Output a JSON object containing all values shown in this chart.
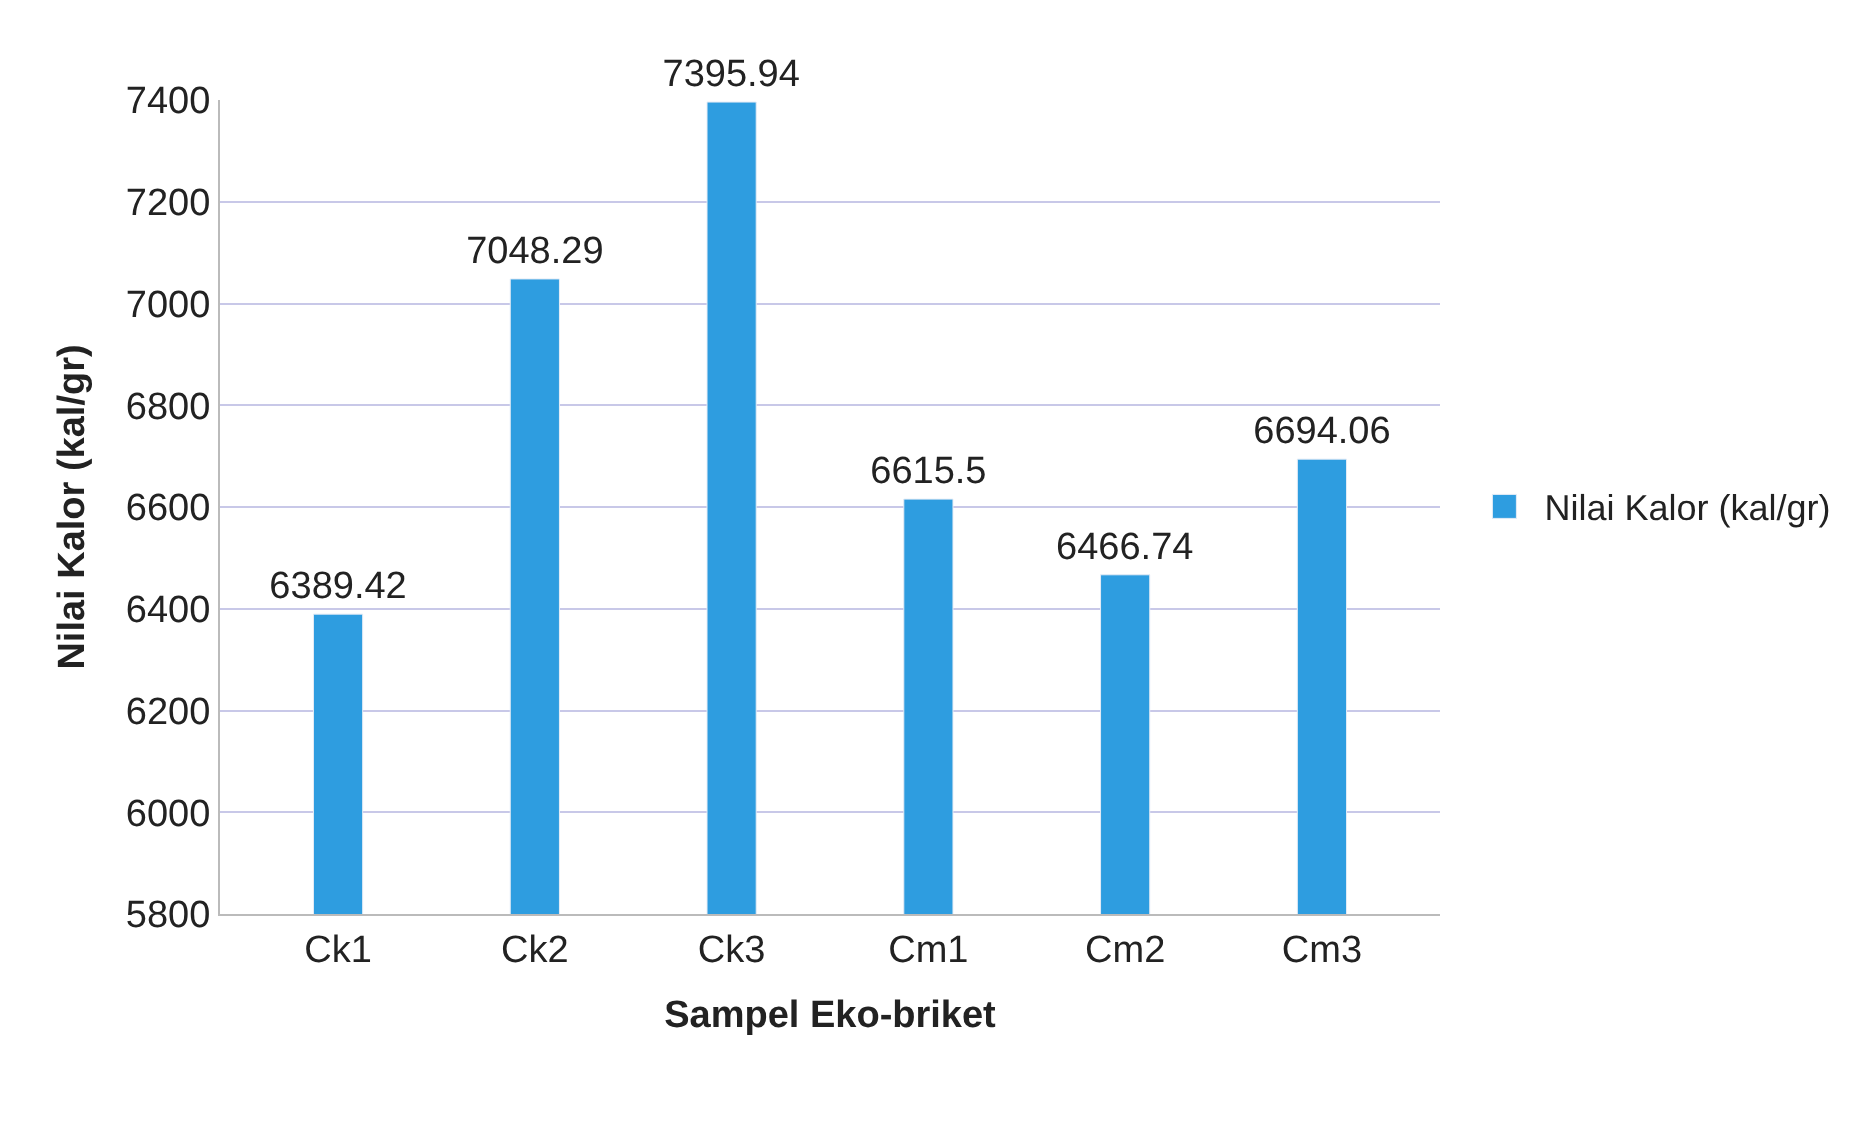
{
  "chart_data": {
    "type": "bar",
    "xlabel": "Sampel Eko-briket",
    "ylabel": "Nilai Kalor (kal/gr)",
    "categories": [
      "Ck1",
      "Ck2",
      "Ck3",
      "Cm1",
      "Cm2",
      "Cm3"
    ],
    "series": [
      {
        "name": "Nilai Kalor (kal/gr)",
        "color": "#2e9de0",
        "values": [
          6389.42,
          7048.29,
          7395.94,
          6615.5,
          6466.74,
          6694.06
        ]
      }
    ],
    "ylim": [
      5800,
      7400
    ],
    "yticks": [
      5800,
      6000,
      6200,
      6400,
      6600,
      6800,
      7000,
      7200,
      7400
    ],
    "grid": "y",
    "legend": "right",
    "data_labels": true
  }
}
